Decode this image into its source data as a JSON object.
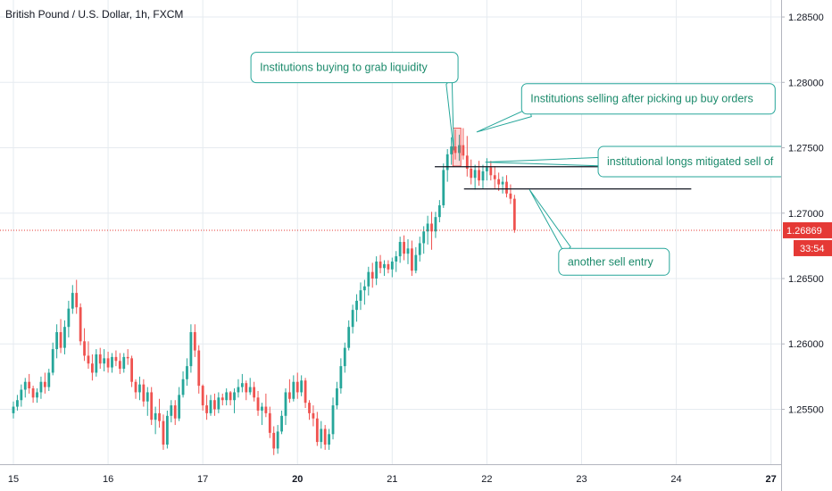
{
  "header": {
    "symbol_title": "British Pound / U.S. Dollar, 1h, FXCM"
  },
  "chart_data": {
    "type": "candlestick",
    "title": "British Pound / U.S. Dollar, 1h, FXCM",
    "ylim": [
      1.2508,
      1.2863
    ],
    "y_ticks": [
      1.255,
      1.26,
      1.265,
      1.27,
      1.275,
      1.28,
      1.285
    ],
    "y_tick_labels": [
      "1.25500",
      "1.26000",
      "1.26500",
      "1.27000",
      "1.27500",
      "1.28000",
      "1.28500"
    ],
    "x_ticks": [
      {
        "label": "15",
        "x": 0,
        "bold": false
      },
      {
        "label": "16",
        "x": 24,
        "bold": false
      },
      {
        "label": "17",
        "x": 48,
        "bold": false
      },
      {
        "label": "20",
        "x": 72,
        "bold": true
      },
      {
        "label": "21",
        "x": 96,
        "bold": false
      },
      {
        "label": "22",
        "x": 120,
        "bold": false
      },
      {
        "label": "23",
        "x": 144,
        "bold": false
      },
      {
        "label": "24",
        "x": 168,
        "bold": false
      },
      {
        "label": "27",
        "x": 192,
        "bold": true
      }
    ],
    "grid": true,
    "colors": {
      "up": "#26a69a",
      "down": "#ef5350",
      "grid": "#e6ebf0",
      "annotation": "#26a69a",
      "price_line": "#e53935"
    },
    "current_price": {
      "value": 1.26869,
      "label": "1.26869",
      "countdown": "33:54"
    },
    "horizontal_lines": [
      {
        "value": 1.27355,
        "x_start": 106.8,
        "x_end": 197
      },
      {
        "value": 1.27185,
        "x_start": 114.2,
        "x_end": 171.8
      }
    ],
    "highlight_box": {
      "x_start": 111.4,
      "x_end": 113.4,
      "y_top": 1.2765,
      "y_bottom": 1.2736
    },
    "annotations": [
      {
        "text": "Institutions buying to grab liquidity",
        "box_x": 60.2,
        "box_y": 1.2823,
        "box_w": 232,
        "box_h": 34,
        "tip_x": 111.6,
        "tip_y": 1.2748
      },
      {
        "text": "Institutions selling after picking up buy orders",
        "box_x": 128.8,
        "box_y": 1.2799,
        "box_w": 284,
        "box_h": 34,
        "tip_x": 117.4,
        "tip_y": 1.2762
      },
      {
        "text": "institutional longs mitigated sell of",
        "box_x": 148.2,
        "box_y": 1.2751,
        "box_w": 210,
        "box_h": 34,
        "tip_x": 119.6,
        "tip_y": 1.2739
      },
      {
        "text": "another sell entry",
        "box_x": 138.2,
        "box_y": 1.2673,
        "box_w": 124,
        "box_h": 30,
        "tip_x": 130.8,
        "tip_y": 1.2718
      }
    ],
    "candles": [
      [
        1.2547,
        1.2556,
        1.2543,
        1.2552
      ],
      [
        1.2552,
        1.2561,
        1.2549,
        1.2557
      ],
      [
        1.2557,
        1.2569,
        1.2552,
        1.2565
      ],
      [
        1.2565,
        1.2574,
        1.2559,
        1.2571
      ],
      [
        1.2571,
        1.2577,
        1.2562,
        1.2566
      ],
      [
        1.2566,
        1.2568,
        1.2555,
        1.2559
      ],
      [
        1.2559,
        1.2566,
        1.2555,
        1.2563
      ],
      [
        1.2563,
        1.2575,
        1.2558,
        1.2571
      ],
      [
        1.2571,
        1.2578,
        1.2562,
        1.2567
      ],
      [
        1.2567,
        1.2581,
        1.2564,
        1.2578
      ],
      [
        1.2578,
        1.2601,
        1.2576,
        1.2596
      ],
      [
        1.2596,
        1.2615,
        1.2589,
        1.2609
      ],
      [
        1.2609,
        1.2619,
        1.2593,
        1.2597
      ],
      [
        1.2597,
        1.2618,
        1.2592,
        1.2613
      ],
      [
        1.2613,
        1.2633,
        1.2605,
        1.2627
      ],
      [
        1.2627,
        1.2645,
        1.2623,
        1.2639
      ],
      [
        1.2639,
        1.2649,
        1.2623,
        1.2628
      ],
      [
        1.2628,
        1.2631,
        1.2599,
        1.2602
      ],
      [
        1.2602,
        1.2612,
        1.2587,
        1.2591
      ],
      [
        1.2591,
        1.2602,
        1.2581,
        1.2585
      ],
      [
        1.2585,
        1.2592,
        1.2572,
        1.2578
      ],
      [
        1.2578,
        1.2596,
        1.2575,
        1.2592
      ],
      [
        1.2592,
        1.2597,
        1.2581,
        1.2585
      ],
      [
        1.2585,
        1.2596,
        1.2579,
        1.2589
      ],
      [
        1.2589,
        1.2594,
        1.2578,
        1.2582
      ],
      [
        1.2582,
        1.2593,
        1.2578,
        1.259
      ],
      [
        1.259,
        1.2595,
        1.2583,
        1.2587
      ],
      [
        1.2587,
        1.2593,
        1.2577,
        1.2581
      ],
      [
        1.2581,
        1.2593,
        1.2578,
        1.259
      ],
      [
        1.259,
        1.2596,
        1.2584,
        1.2589
      ],
      [
        1.2589,
        1.2591,
        1.2567,
        1.2571
      ],
      [
        1.2571,
        1.2573,
        1.2558,
        1.2563
      ],
      [
        1.2563,
        1.2575,
        1.2557,
        1.2569
      ],
      [
        1.2569,
        1.2573,
        1.2552,
        1.2556
      ],
      [
        1.2556,
        1.2567,
        1.2545,
        1.2563
      ],
      [
        1.2563,
        1.2567,
        1.2538,
        1.2542
      ],
      [
        1.2542,
        1.2552,
        1.2531,
        1.2547
      ],
      [
        1.2547,
        1.2558,
        1.2536,
        1.2541
      ],
      [
        1.2541,
        1.2546,
        1.2519,
        1.2523
      ],
      [
        1.2523,
        1.2549,
        1.252,
        1.2545
      ],
      [
        1.2545,
        1.2557,
        1.254,
        1.2553
      ],
      [
        1.2553,
        1.2557,
        1.2538,
        1.2543
      ],
      [
        1.2543,
        1.2567,
        1.2541,
        1.2561
      ],
      [
        1.2561,
        1.2579,
        1.2559,
        1.2573
      ],
      [
        1.2573,
        1.2589,
        1.2568,
        1.2583
      ],
      [
        1.2583,
        1.2615,
        1.2578,
        1.2609
      ],
      [
        1.2609,
        1.2615,
        1.259,
        1.2595
      ],
      [
        1.2595,
        1.2599,
        1.2562,
        1.2568
      ],
      [
        1.2568,
        1.2569,
        1.2549,
        1.2553
      ],
      [
        1.2553,
        1.2561,
        1.2542,
        1.2547
      ],
      [
        1.2547,
        1.2561,
        1.2545,
        1.2557
      ],
      [
        1.2557,
        1.2562,
        1.2545,
        1.255
      ],
      [
        1.255,
        1.2563,
        1.2547,
        1.2559
      ],
      [
        1.2559,
        1.2562,
        1.2553,
        1.2557
      ],
      [
        1.2557,
        1.2566,
        1.2553,
        1.2563
      ],
      [
        1.2563,
        1.2564,
        1.2553,
        1.2557
      ],
      [
        1.2557,
        1.2566,
        1.2547,
        1.2563
      ],
      [
        1.2563,
        1.2573,
        1.2559,
        1.2567
      ],
      [
        1.2567,
        1.2577,
        1.2563,
        1.257
      ],
      [
        1.257,
        1.2572,
        1.2557,
        1.2563
      ],
      [
        1.2563,
        1.2574,
        1.2561,
        1.2567
      ],
      [
        1.2567,
        1.2571,
        1.2556,
        1.2559
      ],
      [
        1.2559,
        1.2564,
        1.2545,
        1.2549
      ],
      [
        1.2549,
        1.2555,
        1.2538,
        1.2552
      ],
      [
        1.2552,
        1.2562,
        1.2544,
        1.2547
      ],
      [
        1.2547,
        1.2552,
        1.2528,
        1.2532
      ],
      [
        1.2532,
        1.2537,
        1.2515,
        1.252
      ],
      [
        1.252,
        1.2538,
        1.2516,
        1.2533
      ],
      [
        1.2533,
        1.2549,
        1.2531,
        1.2545
      ],
      [
        1.2545,
        1.2566,
        1.2538,
        1.2563
      ],
      [
        1.2563,
        1.2573,
        1.2555,
        1.2558
      ],
      [
        1.2558,
        1.2576,
        1.2556,
        1.2571
      ],
      [
        1.2571,
        1.2578,
        1.2558,
        1.2563
      ],
      [
        1.2563,
        1.2576,
        1.256,
        1.2572
      ],
      [
        1.2572,
        1.2574,
        1.2551,
        1.2555
      ],
      [
        1.2555,
        1.2557,
        1.2542,
        1.2547
      ],
      [
        1.2547,
        1.2553,
        1.2537,
        1.2543
      ],
      [
        1.2543,
        1.2548,
        1.2522,
        1.2525
      ],
      [
        1.2525,
        1.2541,
        1.252,
        1.2535
      ],
      [
        1.2535,
        1.2538,
        1.2519,
        1.2523
      ],
      [
        1.2523,
        1.2535,
        1.2519,
        1.2531
      ],
      [
        1.2531,
        1.2559,
        1.2527,
        1.2553
      ],
      [
        1.2553,
        1.2571,
        1.255,
        1.2566
      ],
      [
        1.2566,
        1.2589,
        1.2562,
        1.2583
      ],
      [
        1.2583,
        1.2601,
        1.2578,
        1.2597
      ],
      [
        1.2597,
        1.2618,
        1.2595,
        1.2613
      ],
      [
        1.2613,
        1.263,
        1.2608,
        1.2626
      ],
      [
        1.2626,
        1.2638,
        1.2617,
        1.2633
      ],
      [
        1.2633,
        1.2647,
        1.2626,
        1.2641
      ],
      [
        1.2641,
        1.2649,
        1.263,
        1.2644
      ],
      [
        1.2644,
        1.2659,
        1.2637,
        1.2655
      ],
      [
        1.2655,
        1.2662,
        1.2643,
        1.265
      ],
      [
        1.265,
        1.2667,
        1.2645,
        1.2663
      ],
      [
        1.2663,
        1.2668,
        1.2654,
        1.2658
      ],
      [
        1.2658,
        1.2664,
        1.2652,
        1.2661
      ],
      [
        1.2661,
        1.2664,
        1.2654,
        1.2657
      ],
      [
        1.2657,
        1.2666,
        1.2651,
        1.2663
      ],
      [
        1.2663,
        1.2671,
        1.2655,
        1.2667
      ],
      [
        1.2667,
        1.2682,
        1.2662,
        1.2678
      ],
      [
        1.2678,
        1.2683,
        1.2664,
        1.2669
      ],
      [
        1.2669,
        1.268,
        1.2661,
        1.2673
      ],
      [
        1.2673,
        1.2679,
        1.2652,
        1.2656
      ],
      [
        1.2656,
        1.2674,
        1.2654,
        1.2668
      ],
      [
        1.2668,
        1.2682,
        1.2663,
        1.2677
      ],
      [
        1.2677,
        1.269,
        1.2669,
        1.2686
      ],
      [
        1.2686,
        1.2698,
        1.2676,
        1.2692
      ],
      [
        1.2692,
        1.2701,
        1.2672,
        1.2686
      ],
      [
        1.2686,
        1.2701,
        1.2681,
        1.2697
      ],
      [
        1.2697,
        1.271,
        1.2693,
        1.2706
      ],
      [
        1.2706,
        1.2738,
        1.2704,
        1.2733
      ],
      [
        1.2733,
        1.2749,
        1.2724,
        1.2745
      ],
      [
        1.2745,
        1.2758,
        1.2737,
        1.2751
      ],
      [
        1.2751,
        1.2764,
        1.2741,
        1.2746
      ],
      [
        1.2746,
        1.276,
        1.274,
        1.2752
      ],
      [
        1.2752,
        1.2765,
        1.2741,
        1.2744
      ],
      [
        1.2744,
        1.2759,
        1.2728,
        1.2734
      ],
      [
        1.2734,
        1.2741,
        1.2722,
        1.2727
      ],
      [
        1.2727,
        1.2737,
        1.2718,
        1.2733
      ],
      [
        1.2733,
        1.274,
        1.2721,
        1.2725
      ],
      [
        1.2725,
        1.2737,
        1.2719,
        1.2732
      ],
      [
        1.2732,
        1.2742,
        1.2725,
        1.2735
      ],
      [
        1.2735,
        1.274,
        1.2725,
        1.2729
      ],
      [
        1.2729,
        1.2736,
        1.2719,
        1.2726
      ],
      [
        1.2726,
        1.2731,
        1.2717,
        1.2722
      ],
      [
        1.2722,
        1.2728,
        1.2715,
        1.2724
      ],
      [
        1.2724,
        1.2729,
        1.2712,
        1.2715
      ],
      [
        1.2715,
        1.2722,
        1.2707,
        1.2711
      ],
      [
        1.2711,
        1.2714,
        1.2685,
        1.2687
      ]
    ]
  }
}
